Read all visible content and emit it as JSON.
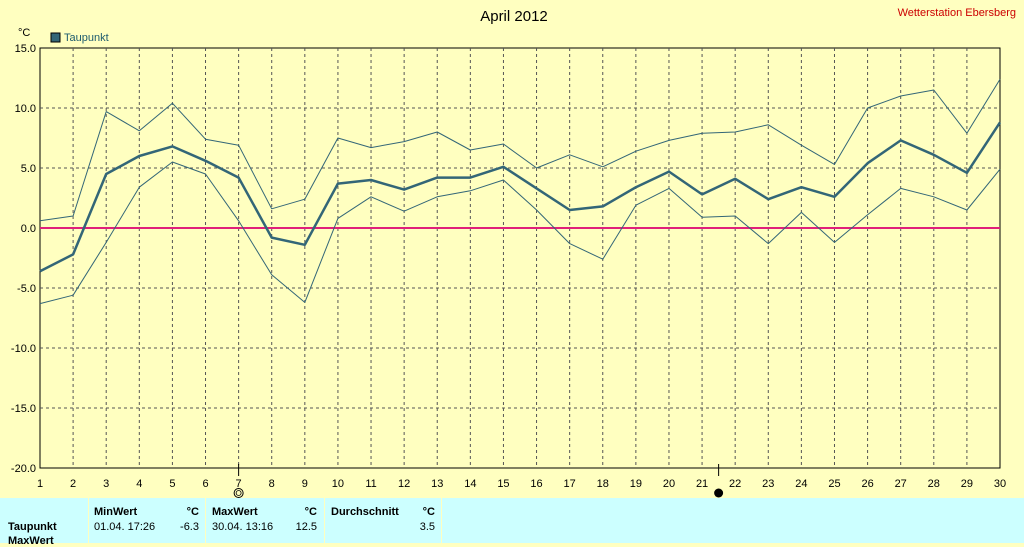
{
  "chart_data": {
    "type": "line",
    "title": "April 2012",
    "station": "Wetterstation Ebersberg",
    "yunit": "°C",
    "ylim": [
      -20,
      15
    ],
    "yticks": [
      "15.0",
      "10.0",
      "5.0",
      "0.0",
      "-5.0",
      "-10.0",
      "-15.0",
      "-20.0"
    ],
    "ytick_values": [
      15,
      10,
      5,
      0,
      -5,
      -10,
      -15,
      -20
    ],
    "x": [
      1,
      2,
      3,
      4,
      5,
      6,
      7,
      8,
      9,
      10,
      11,
      12,
      13,
      14,
      15,
      16,
      17,
      18,
      19,
      20,
      21,
      22,
      23,
      24,
      25,
      26,
      27,
      28,
      29,
      30
    ],
    "xlabels": [
      "1",
      "2",
      "3",
      "4",
      "5",
      "6",
      "7",
      "8",
      "9",
      "10",
      "11",
      "12",
      "13",
      "14",
      "15",
      "16",
      "17",
      "18",
      "19",
      "20",
      "21",
      "22",
      "23",
      "24",
      "25",
      "26",
      "27",
      "28",
      "29",
      "30"
    ],
    "grid": true,
    "legend": "top-left",
    "reference_line": 0,
    "moon_phases": [
      {
        "day": 7,
        "phase": "full-moon"
      },
      {
        "day": 21.5,
        "phase": "new-moon"
      }
    ],
    "series": [
      {
        "name": "Taupunkt",
        "role": "mean",
        "color": "#336677",
        "values": [
          -3.6,
          -2.2,
          4.5,
          6.0,
          6.8,
          5.6,
          4.2,
          -0.8,
          -1.4,
          3.7,
          4.0,
          3.2,
          4.2,
          4.2,
          5.1,
          3.3,
          1.5,
          1.8,
          3.4,
          4.7,
          2.8,
          4.1,
          2.4,
          3.4,
          2.6,
          5.4,
          7.3,
          6.1,
          4.6,
          8.8
        ]
      },
      {
        "role": "max",
        "color": "#336677",
        "values": [
          0.6,
          1.0,
          9.7,
          8.1,
          10.4,
          7.4,
          6.9,
          1.6,
          2.4,
          7.5,
          6.7,
          7.2,
          8.0,
          6.5,
          7.0,
          5.0,
          6.1,
          5.1,
          6.4,
          7.3,
          7.9,
          8.0,
          8.6,
          6.9,
          5.3,
          10.0,
          11.0,
          11.5,
          7.9,
          12.4
        ]
      },
      {
        "role": "min",
        "color": "#336677",
        "values": [
          -6.3,
          -5.6,
          -1.2,
          3.4,
          5.5,
          4.5,
          0.6,
          -3.9,
          -6.2,
          0.8,
          2.6,
          1.4,
          2.6,
          3.1,
          4.0,
          1.5,
          -1.3,
          -2.6,
          1.9,
          3.3,
          0.9,
          1.0,
          -1.3,
          1.3,
          -1.2,
          1.1,
          3.3,
          2.6,
          1.5,
          4.9
        ]
      }
    ]
  },
  "stats": {
    "row_label": "Taupunkt",
    "row_label_2": "MaxWert",
    "min": {
      "header": "MinWert",
      "unit": "°C",
      "datetime": "01.04.  17:26",
      "value": "-6.3"
    },
    "max": {
      "header": "MaxWert",
      "unit": "°C",
      "datetime": "30.04.  13:16",
      "value": "12.5"
    },
    "avg": {
      "header": "Durchschnitt",
      "unit": "°C",
      "value": "3.5"
    }
  }
}
